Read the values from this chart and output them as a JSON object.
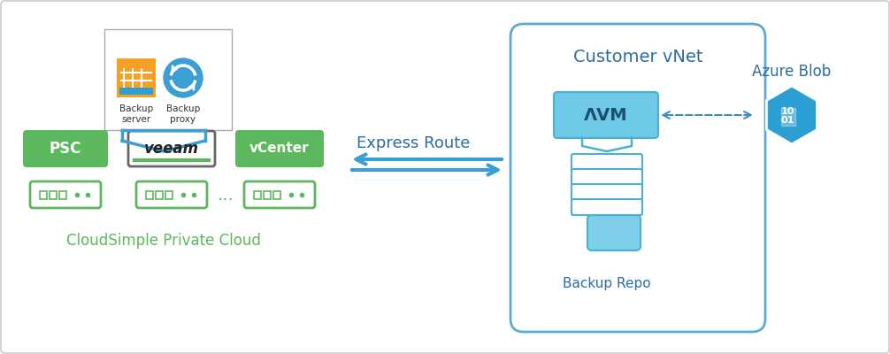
{
  "bg_color": "#ffffff",
  "border_color": "#d0d0d0",
  "green_color": "#5cb85c",
  "blue_color": "#3b9fd4",
  "blue_light": "#7ecfea",
  "blue_mid": "#4db8e0",
  "vnet_border": "#5aabcf",
  "express_route_label": "Express Route",
  "customer_vnet_label": "Customer vNet",
  "backup_repo_label": "Backup Repo",
  "azure_blob_label": "Azure Blob",
  "psc_label": "PSC",
  "veeam_label": "veeam",
  "vcenter_label": "vCenter",
  "cloud_label": "CloudSimple Private Cloud",
  "backup_server_label": "Backup\nserver",
  "backup_proxy_label": "Backup\nproxy",
  "avm_label": "ΛVM"
}
